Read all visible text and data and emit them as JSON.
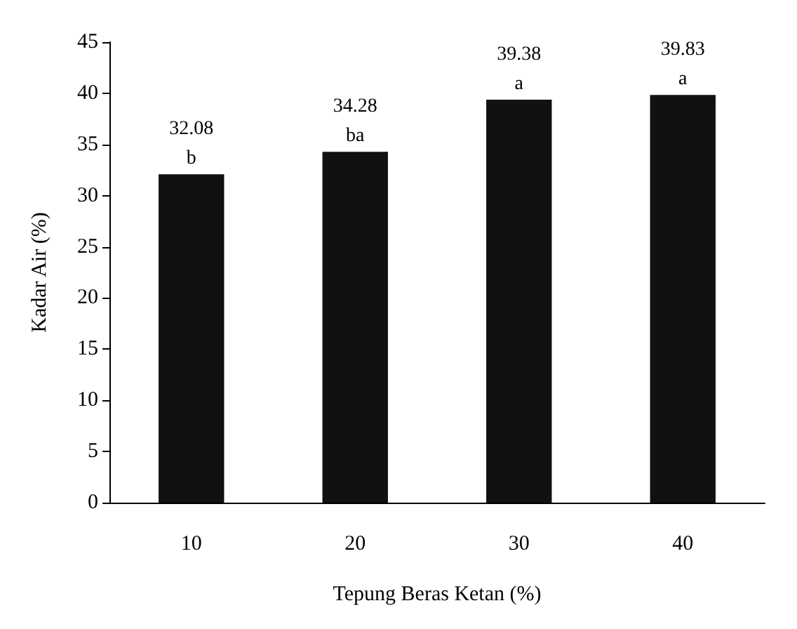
{
  "chart_data": {
    "type": "bar",
    "xlabel": "Tepung Beras Ketan (%)",
    "ylabel": "Kadar Air (%)",
    "categories": [
      "10",
      "20",
      "30",
      "40"
    ],
    "values": [
      32.08,
      34.28,
      39.38,
      39.83
    ],
    "value_labels": [
      "32.08",
      "34.28",
      "39.38",
      "39.83"
    ],
    "color": "#111111",
    "annotations": [
      {
        "text": "b",
        "x": "10",
        "y": 32.08
      },
      {
        "text": "ba",
        "x": "20",
        "y": 34.28
      },
      {
        "text": "a",
        "x": "30",
        "y": 39.38
      },
      {
        "text": "a",
        "x": "40",
        "y": 39.83
      }
    ],
    "ylim": [
      0,
      45
    ],
    "yticks": [
      0,
      5,
      10,
      15,
      20,
      25,
      30,
      35,
      40,
      45
    ],
    "grid": false
  }
}
